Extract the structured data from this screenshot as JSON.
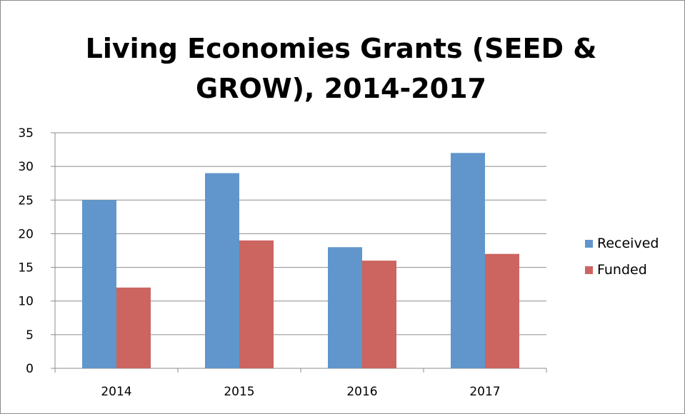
{
  "chart_data": {
    "type": "bar",
    "title_lines": [
      "Living Economies Grants (SEED &",
      "GROW), 2014-2017"
    ],
    "categories": [
      "2014",
      "2015",
      "2016",
      "2017"
    ],
    "series": [
      {
        "name": "Received",
        "color": "#6096cc",
        "values": [
          25,
          29,
          18,
          32
        ]
      },
      {
        "name": "Funded",
        "color": "#cc6460",
        "values": [
          12,
          19,
          16,
          17
        ]
      }
    ],
    "ylim": [
      0,
      35
    ],
    "yticks": [
      0,
      5,
      10,
      15,
      20,
      25,
      30,
      35
    ],
    "grid": true,
    "legend_position": "right",
    "xlabel": "",
    "ylabel": ""
  }
}
